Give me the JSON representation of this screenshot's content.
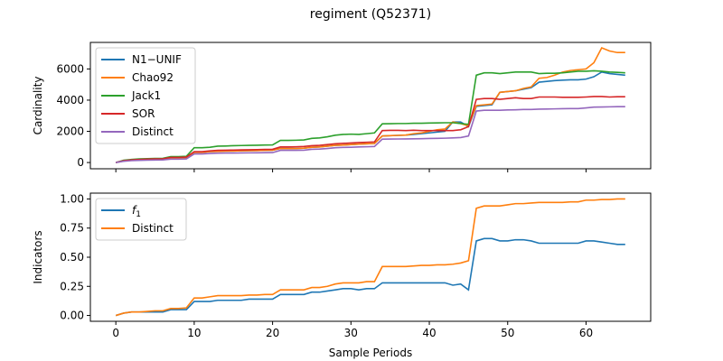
{
  "chart_data": {
    "title": "regiment (Q52371)",
    "xlabel": "Sample Periods",
    "colors": {
      "N1−UNIF": "#1f77b4",
      "Chao92": "#ff7f0e",
      "Jack1": "#2ca02c",
      "SOR": "#d62728",
      "Distinct": "#9467bd",
      "f1": "#1f77b4",
      "Distinct2": "#ff7f0e"
    },
    "panels": [
      {
        "type": "line",
        "ylabel": "Cardinality",
        "xlim": [
          -3.25,
          68.25
        ],
        "ylim": [
          -400,
          7700
        ],
        "xticks": [
          0,
          10,
          20,
          30,
          40,
          50,
          60
        ],
        "yticks": [
          0,
          2000,
          4000,
          6000
        ],
        "legend": "top-left",
        "series": [
          {
            "name": "N1−UNIF",
            "color": "#1f77b4",
            "x": [
              0,
              1,
              2,
              3,
              4,
              5,
              6,
              7,
              8,
              9,
              10,
              11,
              12,
              13,
              14,
              15,
              16,
              17,
              18,
              19,
              20,
              21,
              22,
              23,
              24,
              25,
              26,
              27,
              28,
              29,
              30,
              31,
              32,
              33,
              34,
              35,
              36,
              37,
              38,
              39,
              40,
              41,
              42,
              43,
              44,
              45,
              46,
              47,
              48,
              49,
              50,
              51,
              52,
              53,
              54,
              55,
              56,
              57,
              58,
              59,
              60,
              61,
              62,
              63,
              64,
              65
            ],
            "y": [
              0,
              100,
              150,
              180,
              200,
              210,
              220,
              300,
              300,
              320,
              650,
              650,
              700,
              720,
              730,
              740,
              750,
              760,
              770,
              780,
              790,
              900,
              900,
              900,
              920,
              980,
              1000,
              1050,
              1100,
              1120,
              1150,
              1180,
              1200,
              1220,
              1700,
              1720,
              1740,
              1760,
              1800,
              1850,
              1900,
              1950,
              2000,
              2600,
              2600,
              2300,
              3600,
              3650,
              3700,
              4500,
              4550,
              4600,
              4700,
              4800,
              5150,
              5200,
              5250,
              5280,
              5300,
              5300,
              5350,
              5500,
              5800,
              5700,
              5650,
              5600
            ]
          },
          {
            "name": "Chao92",
            "color": "#ff7f0e",
            "x": [
              0,
              1,
              2,
              3,
              4,
              5,
              6,
              7,
              8,
              9,
              10,
              11,
              12,
              13,
              14,
              15,
              16,
              17,
              18,
              19,
              20,
              21,
              22,
              23,
              24,
              25,
              26,
              27,
              28,
              29,
              30,
              31,
              32,
              33,
              34,
              35,
              36,
              37,
              38,
              39,
              40,
              41,
              42,
              43,
              44,
              45,
              46,
              47,
              48,
              49,
              50,
              51,
              52,
              53,
              54,
              55,
              56,
              57,
              58,
              59,
              60,
              61,
              62,
              63,
              64,
              65
            ],
            "y": [
              0,
              100,
              150,
              180,
              200,
              210,
              220,
              300,
              300,
              320,
              650,
              650,
              700,
              720,
              730,
              740,
              750,
              760,
              770,
              780,
              790,
              900,
              900,
              900,
              920,
              980,
              1000,
              1050,
              1100,
              1120,
              1150,
              1180,
              1200,
              1220,
              1700,
              1720,
              1740,
              1760,
              1850,
              1900,
              2000,
              2100,
              2150,
              2600,
              2500,
              2350,
              3650,
              3700,
              3750,
              4500,
              4550,
              4600,
              4750,
              4850,
              5400,
              5450,
              5600,
              5800,
              5900,
              5950,
              6000,
              6400,
              7350,
              7150,
              7050,
              7050
            ]
          },
          {
            "name": "Jack1",
            "color": "#2ca02c",
            "x": [
              0,
              1,
              2,
              3,
              4,
              5,
              6,
              7,
              8,
              9,
              10,
              11,
              12,
              13,
              14,
              15,
              16,
              17,
              18,
              19,
              20,
              21,
              22,
              23,
              24,
              25,
              26,
              27,
              28,
              29,
              30,
              31,
              32,
              33,
              34,
              35,
              36,
              37,
              38,
              39,
              40,
              41,
              42,
              43,
              44,
              45,
              46,
              47,
              48,
              49,
              50,
              51,
              52,
              53,
              54,
              55,
              56,
              57,
              58,
              59,
              60,
              61,
              62,
              63,
              64,
              65
            ],
            "y": [
              0,
              150,
              200,
              230,
              250,
              260,
              270,
              380,
              380,
              400,
              950,
              950,
              980,
              1050,
              1060,
              1080,
              1090,
              1100,
              1110,
              1120,
              1130,
              1420,
              1420,
              1430,
              1450,
              1550,
              1580,
              1650,
              1750,
              1800,
              1820,
              1800,
              1850,
              1900,
              2480,
              2490,
              2500,
              2500,
              2520,
              2520,
              2530,
              2540,
              2550,
              2550,
              2500,
              2450,
              5600,
              5750,
              5750,
              5700,
              5750,
              5800,
              5800,
              5800,
              5700,
              5720,
              5720,
              5750,
              5800,
              5850,
              5850,
              5880,
              5850,
              5800,
              5780,
              5750
            ]
          },
          {
            "name": "SOR",
            "color": "#d62728",
            "x": [
              0,
              1,
              2,
              3,
              4,
              5,
              6,
              7,
              8,
              9,
              10,
              11,
              12,
              13,
              14,
              15,
              16,
              17,
              18,
              19,
              20,
              21,
              22,
              23,
              24,
              25,
              26,
              27,
              28,
              29,
              30,
              31,
              32,
              33,
              34,
              35,
              36,
              37,
              38,
              39,
              40,
              41,
              42,
              43,
              44,
              45,
              46,
              47,
              48,
              49,
              50,
              51,
              52,
              53,
              54,
              55,
              56,
              57,
              58,
              59,
              60,
              61,
              62,
              63,
              64,
              65
            ],
            "y": [
              0,
              120,
              170,
              200,
              220,
              230,
              240,
              330,
              330,
              350,
              700,
              700,
              750,
              780,
              790,
              800,
              810,
              820,
              830,
              840,
              850,
              1000,
              1000,
              1010,
              1030,
              1080,
              1100,
              1150,
              1200,
              1230,
              1250,
              1280,
              1300,
              1320,
              2050,
              2060,
              2060,
              2050,
              2070,
              2050,
              2050,
              2050,
              2050,
              2050,
              2100,
              2300,
              4050,
              4100,
              4100,
              4050,
              4100,
              4150,
              4100,
              4100,
              4200,
              4200,
              4200,
              4180,
              4180,
              4180,
              4200,
              4230,
              4230,
              4200,
              4220,
              4220
            ]
          },
          {
            "name": "Distinct",
            "color": "#9467bd",
            "x": [
              0,
              1,
              2,
              3,
              4,
              5,
              6,
              7,
              8,
              9,
              10,
              11,
              12,
              13,
              14,
              15,
              16,
              17,
              18,
              19,
              20,
              21,
              22,
              23,
              24,
              25,
              26,
              27,
              28,
              29,
              30,
              31,
              32,
              33,
              34,
              35,
              36,
              37,
              38,
              39,
              40,
              41,
              42,
              43,
              44,
              45,
              46,
              47,
              48,
              49,
              50,
              51,
              52,
              53,
              54,
              55,
              56,
              57,
              58,
              59,
              60,
              61,
              62,
              63,
              64,
              65
            ],
            "y": [
              0,
              80,
              120,
              140,
              150,
              160,
              170,
              220,
              220,
              230,
              550,
              550,
              580,
              600,
              605,
              610,
              615,
              620,
              625,
              630,
              635,
              780,
              780,
              785,
              790,
              850,
              860,
              900,
              950,
              970,
              980,
              1000,
              1010,
              1030,
              1500,
              1505,
              1510,
              1515,
              1520,
              1530,
              1540,
              1550,
              1560,
              1580,
              1600,
              1700,
              3300,
              3350,
              3350,
              3350,
              3370,
              3380,
              3400,
              3400,
              3420,
              3430,
              3440,
              3450,
              3460,
              3460,
              3500,
              3550,
              3560,
              3570,
              3580,
              3580
            ]
          }
        ]
      },
      {
        "type": "line",
        "ylabel": "Indicators",
        "xlim": [
          -3.25,
          68.25
        ],
        "ylim": [
          -0.05,
          1.05
        ],
        "xticks": [
          0,
          10,
          20,
          30,
          40,
          50,
          60
        ],
        "yticks": [
          0.0,
          0.25,
          0.5,
          0.75,
          1.0
        ],
        "yticklabels": [
          "0.00",
          "0.25",
          "0.50",
          "0.75",
          "1.00"
        ],
        "xticklabels": [
          "0",
          "10",
          "20",
          "30",
          "40",
          "50",
          "60"
        ],
        "legend": "top-left",
        "series": [
          {
            "name": "f1",
            "color": "#1f77b4",
            "x": [
              0,
              1,
              2,
              3,
              4,
              5,
              6,
              7,
              8,
              9,
              10,
              11,
              12,
              13,
              14,
              15,
              16,
              17,
              18,
              19,
              20,
              21,
              22,
              23,
              24,
              25,
              26,
              27,
              28,
              29,
              30,
              31,
              32,
              33,
              34,
              35,
              36,
              37,
              38,
              39,
              40,
              41,
              42,
              43,
              44,
              45,
              46,
              47,
              48,
              49,
              50,
              51,
              52,
              53,
              54,
              55,
              56,
              57,
              58,
              59,
              60,
              61,
              62,
              63,
              64,
              65
            ],
            "y": [
              0.0,
              0.02,
              0.03,
              0.03,
              0.03,
              0.03,
              0.03,
              0.05,
              0.05,
              0.05,
              0.12,
              0.12,
              0.12,
              0.13,
              0.13,
              0.13,
              0.13,
              0.14,
              0.14,
              0.14,
              0.14,
              0.18,
              0.18,
              0.18,
              0.18,
              0.2,
              0.2,
              0.21,
              0.22,
              0.23,
              0.23,
              0.22,
              0.23,
              0.23,
              0.28,
              0.28,
              0.28,
              0.28,
              0.28,
              0.28,
              0.28,
              0.28,
              0.28,
              0.26,
              0.27,
              0.22,
              0.64,
              0.66,
              0.66,
              0.64,
              0.64,
              0.65,
              0.65,
              0.64,
              0.62,
              0.62,
              0.62,
              0.62,
              0.62,
              0.62,
              0.64,
              0.64,
              0.63,
              0.62,
              0.61,
              0.61
            ]
          },
          {
            "name": "Distinct",
            "color": "#ff7f0e",
            "x": [
              0,
              1,
              2,
              3,
              4,
              5,
              6,
              7,
              8,
              9,
              10,
              11,
              12,
              13,
              14,
              15,
              16,
              17,
              18,
              19,
              20,
              21,
              22,
              23,
              24,
              25,
              26,
              27,
              28,
              29,
              30,
              31,
              32,
              33,
              34,
              35,
              36,
              37,
              38,
              39,
              40,
              41,
              42,
              43,
              44,
              45,
              46,
              47,
              48,
              49,
              50,
              51,
              52,
              53,
              54,
              55,
              56,
              57,
              58,
              59,
              60,
              61,
              62,
              63,
              64,
              65
            ],
            "y": [
              0.0,
              0.02,
              0.03,
              0.03,
              0.035,
              0.04,
              0.04,
              0.06,
              0.06,
              0.065,
              0.15,
              0.15,
              0.16,
              0.17,
              0.17,
              0.17,
              0.17,
              0.175,
              0.175,
              0.18,
              0.18,
              0.22,
              0.22,
              0.22,
              0.22,
              0.24,
              0.24,
              0.25,
              0.27,
              0.28,
              0.28,
              0.28,
              0.29,
              0.29,
              0.42,
              0.42,
              0.42,
              0.42,
              0.425,
              0.43,
              0.43,
              0.435,
              0.435,
              0.44,
              0.45,
              0.47,
              0.92,
              0.94,
              0.94,
              0.94,
              0.95,
              0.96,
              0.96,
              0.965,
              0.97,
              0.97,
              0.97,
              0.97,
              0.975,
              0.975,
              0.99,
              0.99,
              0.995,
              0.995,
              1.0,
              1.0
            ]
          }
        ]
      }
    ]
  }
}
